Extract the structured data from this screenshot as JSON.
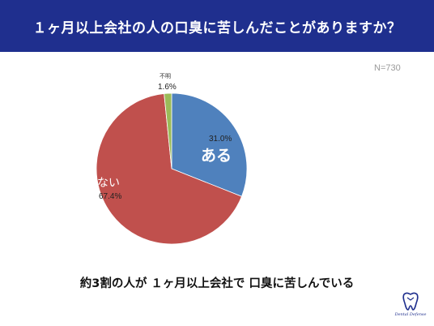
{
  "header": {
    "title": "１ヶ月以上会社の人の口臭に苦しんだことがありますか？"
  },
  "sample_size": "N=730",
  "chart_data": {
    "type": "pie",
    "title": "１ヶ月以上会社の人の口臭に苦しんだことがありますか？",
    "slices": [
      {
        "label": "ある",
        "value": 31.0,
        "display": "31.0%",
        "color": "#4f81bd"
      },
      {
        "label": "ない",
        "value": 67.4,
        "display": "67.4%",
        "color": "#c0504d"
      },
      {
        "label": "不明",
        "value": 1.6,
        "display": "1.6%",
        "color": "#9bbb59"
      }
    ]
  },
  "summary": "約3割の人が １ヶ月以上会社で 口臭に苦しんでいる",
  "logo": {
    "caption": "Dental Defense",
    "icon": "tooth-icon"
  },
  "colors": {
    "header_bg": "#1f2f8e",
    "header_text": "#ffffff"
  }
}
